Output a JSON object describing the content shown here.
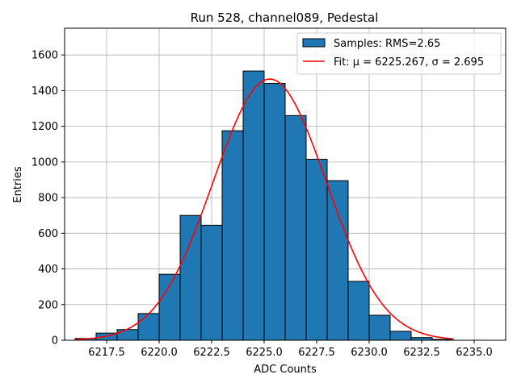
{
  "chart_data": {
    "type": "histogram",
    "title": "Run 528, channel089, Pedestal",
    "xlabel": "ADC Counts",
    "ylabel": "Entries",
    "xlim": [
      6215.5,
      6236.5
    ],
    "ylim": [
      0,
      1750
    ],
    "xticks": [
      6217.5,
      6220.0,
      6222.5,
      6225.0,
      6227.5,
      6230.0,
      6232.5,
      6235.0
    ],
    "xtick_labels": [
      "6217.5",
      "6220.0",
      "6222.5",
      "6225.0",
      "6227.5",
      "6230.0",
      "6232.5",
      "6235.0"
    ],
    "yticks": [
      0,
      200,
      400,
      600,
      800,
      1000,
      1200,
      1400,
      1600
    ],
    "ytick_labels": [
      "0",
      "200",
      "400",
      "600",
      "800",
      "1000",
      "1200",
      "1400",
      "1600"
    ],
    "grid": true,
    "legend_position": "top-right",
    "legend": [
      {
        "label": "Samples: RMS=2.65",
        "kind": "bar"
      },
      {
        "label": "Fit: μ = 6225.267, σ = 2.695",
        "kind": "line"
      }
    ],
    "bins": [
      {
        "x0": 6216.0,
        "x1": 6217.0,
        "count": 10
      },
      {
        "x0": 6217.0,
        "x1": 6218.0,
        "count": 40
      },
      {
        "x0": 6218.0,
        "x1": 6219.0,
        "count": 60
      },
      {
        "x0": 6219.0,
        "x1": 6220.0,
        "count": 150
      },
      {
        "x0": 6220.0,
        "x1": 6221.0,
        "count": 370
      },
      {
        "x0": 6221.0,
        "x1": 6222.0,
        "count": 700
      },
      {
        "x0": 6222.0,
        "x1": 6223.0,
        "count": 645
      },
      {
        "x0": 6223.0,
        "x1": 6224.0,
        "count": 1175
      },
      {
        "x0": 6224.0,
        "x1": 6225.0,
        "count": 1510
      },
      {
        "x0": 6225.0,
        "x1": 6226.0,
        "count": 1440
      },
      {
        "x0": 6226.0,
        "x1": 6227.0,
        "count": 1260
      },
      {
        "x0": 6227.0,
        "x1": 6228.0,
        "count": 1015
      },
      {
        "x0": 6228.0,
        "x1": 6229.0,
        "count": 895
      },
      {
        "x0": 6229.0,
        "x1": 6230.0,
        "count": 330
      },
      {
        "x0": 6230.0,
        "x1": 6231.0,
        "count": 140
      },
      {
        "x0": 6231.0,
        "x1": 6232.0,
        "count": 50
      },
      {
        "x0": 6232.0,
        "x1": 6233.0,
        "count": 15
      },
      {
        "x0": 6233.0,
        "x1": 6234.0,
        "count": 5
      }
    ],
    "fit": {
      "mu": 6225.267,
      "sigma": 2.695,
      "amplitude": 1465,
      "x_range": [
        6216.0,
        6234.0
      ]
    },
    "colors": {
      "bar_fill": "#1f77b4",
      "bar_edge": "#000000",
      "fit_line": "#ff0000",
      "grid": "#b0b0b0"
    }
  }
}
